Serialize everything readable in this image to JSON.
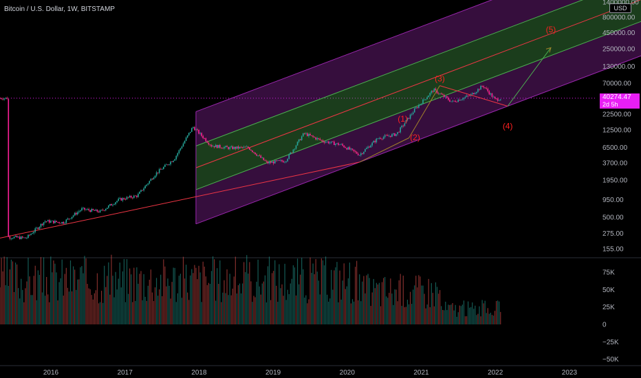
{
  "header": {
    "title": "Bitcoin / U.S. Dollar, 1W, BITSTAMP",
    "currency": "USD"
  },
  "price_tag": {
    "price": "40274.47",
    "countdown": "2d 5h",
    "color": "#e91ef5"
  },
  "colors": {
    "background": "#000000",
    "up_candle": "#26a69a",
    "down_candle": "#ef5350",
    "channel_outer": "#9c27b0",
    "channel_inner": "#4caf50",
    "trend_line": "#f23645",
    "wave_arrow": "#a3822a",
    "wave_label": "#ff2020"
  },
  "chart_data": [
    {
      "type": "line",
      "title": "Bitcoin / U.S. Dollar, 1W, BITSTAMP",
      "xlabel": "",
      "ylabel": "",
      "scale": "log",
      "x_tick_labels": [
        "2016",
        "2017",
        "2018",
        "2019",
        "2020",
        "2021",
        "2022",
        "2023"
      ],
      "y_tick_labels": [
        "1400000.00",
        "800000.00",
        "450000.00",
        "250000.00",
        "130000.00",
        "70000.00",
        "40274.47",
        "22500.00",
        "12500.00",
        "6500.00",
        "3700.00",
        "1950.00",
        "950.00",
        "500.00",
        "275.00",
        "155.00"
      ],
      "ylim": [
        155,
        1400000
      ],
      "series": [
        {
          "x": [
            "2015-06",
            "2015-09",
            "2015-12",
            "2016-03",
            "2016-06",
            "2016-09",
            "2016-12",
            "2017-03",
            "2017-06",
            "2017-09",
            "2017-12",
            "2018-03",
            "2018-06",
            "2018-09",
            "2018-12",
            "2019-03",
            "2019-06",
            "2019-09",
            "2019-12",
            "2020-03",
            "2020-06",
            "2020-09",
            "2020-12",
            "2021-03",
            "2021-06",
            "2021-09",
            "2021-11",
            "2022-01",
            "2022-02"
          ],
          "values": [
            240,
            230,
            430,
            410,
            670,
            610,
            950,
            1100,
            2500,
            4300,
            14000,
            7000,
            6400,
            6500,
            3700,
            4000,
            11000,
            8300,
            7200,
            5000,
            9200,
            10700,
            27000,
            55000,
            35000,
            45000,
            64000,
            38000,
            40274
          ]
        }
      ],
      "annotations": [
        "(1)",
        "(2)",
        "(3)",
        "(4)",
        "(5)"
      ],
      "waves": [
        {
          "label": "(1)",
          "x": "2020-10",
          "y": 17000
        },
        {
          "label": "(2)",
          "x": "2020-12",
          "y": 8500
        },
        {
          "label": "(3)",
          "x": "2021-04",
          "y": 75000
        },
        {
          "label": "(4)",
          "x": "2022-03",
          "y": 13000
        },
        {
          "label": "(5)",
          "x": "2022-10",
          "y": 460000
        }
      ]
    },
    {
      "type": "bar",
      "title": "",
      "xlabel": "",
      "ylabel": "",
      "y_tick_labels": [
        "75K",
        "50K",
        "25K",
        "0",
        "−25K",
        "−50K"
      ],
      "ylim": [
        -50000,
        100000
      ]
    }
  ]
}
